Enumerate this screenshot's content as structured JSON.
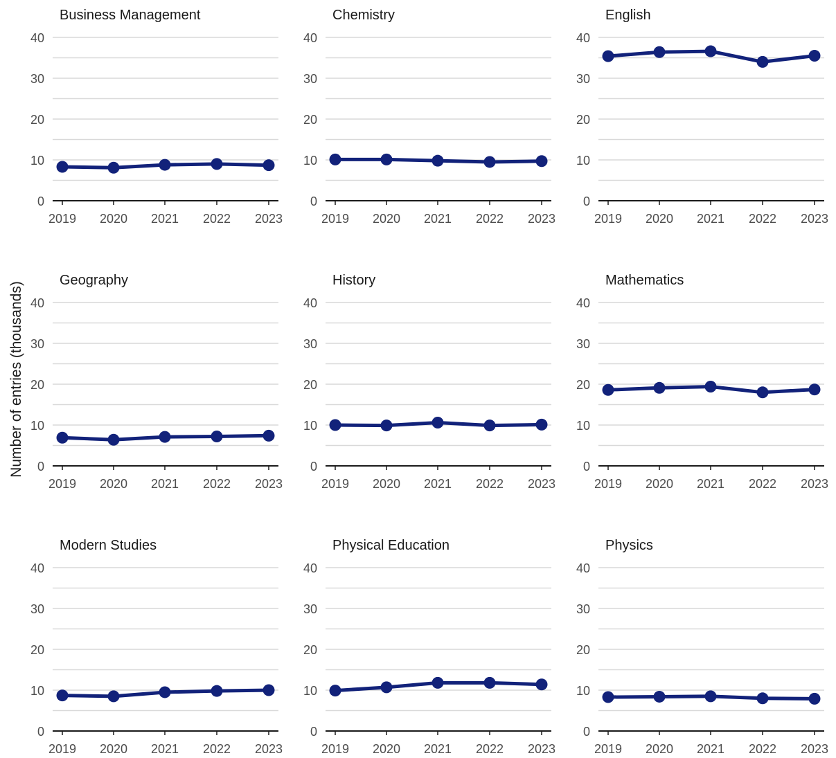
{
  "chart_data": {
    "type": "line",
    "ylabel": "Number of entries (thousands)",
    "x": [
      "2019",
      "2020",
      "2021",
      "2022",
      "2023"
    ],
    "ylim": [
      0,
      40
    ],
    "yticks": [
      0,
      10,
      20,
      30,
      40
    ],
    "grid": true,
    "line_color": "#12227a",
    "panels": [
      {
        "title": "Business Management",
        "values": [
          8.3,
          8.1,
          8.8,
          9.0,
          8.7
        ]
      },
      {
        "title": "Chemistry",
        "values": [
          10.1,
          10.1,
          9.8,
          9.5,
          9.7
        ]
      },
      {
        "title": "English",
        "values": [
          35.4,
          36.4,
          36.6,
          34.0,
          35.5
        ]
      },
      {
        "title": "Geography",
        "values": [
          6.9,
          6.4,
          7.1,
          7.2,
          7.4
        ]
      },
      {
        "title": "History",
        "values": [
          10.0,
          9.9,
          10.6,
          9.9,
          10.1
        ]
      },
      {
        "title": "Mathematics",
        "values": [
          18.6,
          19.1,
          19.4,
          18.0,
          18.7
        ]
      },
      {
        "title": "Modern Studies",
        "values": [
          8.7,
          8.5,
          9.5,
          9.8,
          10.0
        ]
      },
      {
        "title": "Physical Education",
        "values": [
          9.9,
          10.7,
          11.8,
          11.8,
          11.4
        ]
      },
      {
        "title": "Physics",
        "values": [
          8.3,
          8.4,
          8.5,
          8.0,
          7.9
        ]
      }
    ]
  }
}
